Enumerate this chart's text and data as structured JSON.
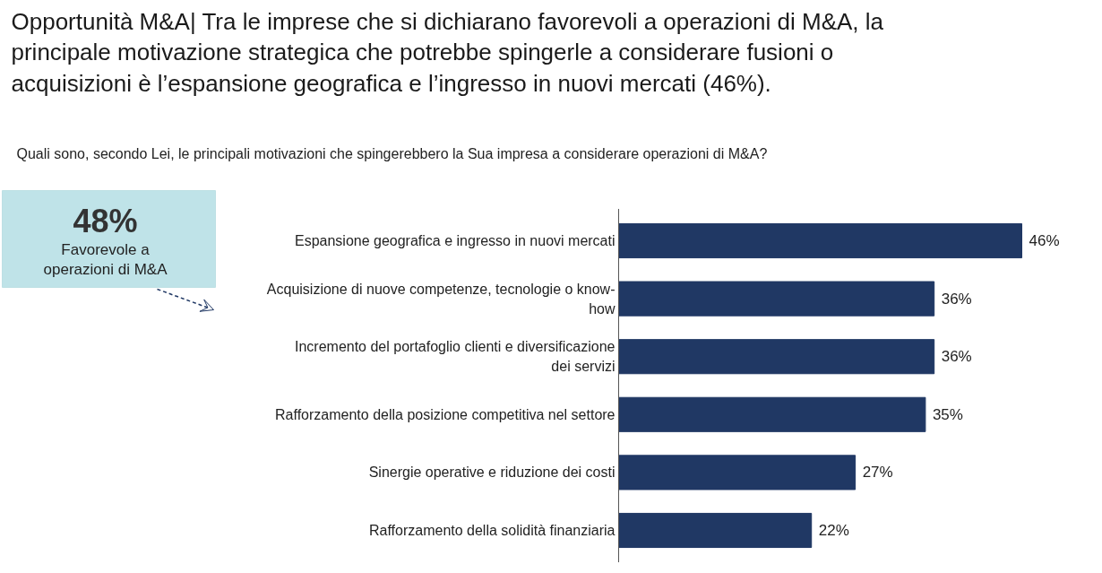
{
  "chart_data": {
    "type": "bar",
    "orientation": "horizontal",
    "title": "Opportunità M&A| Tra le imprese che si dichiarano favorevoli a operazioni di M&A, la principale motivazione strategica che potrebbe spingerle a considerare fusioni o acquisizioni è l’espansione geografica e l’ingresso in nuovi mercati (46%).",
    "subtitle": "Quali sono, secondo Lei, le principali motivazioni che spingerebbero la Sua impresa a considerare operazioni di M&A?",
    "categories": [
      "Espansione geografica e ingresso in nuovi mercati",
      "Acquisizione di nuove competenze, tecnologie o know-how",
      "Incremento del portafoglio clienti e diversificazione dei servizi",
      "Rafforzamento della posizione competitiva nel settore",
      "Sinergie operative e riduzione dei costi",
      "Rafforzamento della solidità finanziaria"
    ],
    "values": [
      46,
      36,
      36,
      35,
      27,
      22
    ],
    "value_labels": [
      "46%",
      "36%",
      "36%",
      "35%",
      "27%",
      "22%"
    ],
    "color": "#203864",
    "annotations": [
      "48%",
      "Favorevole a operazioni di M&A"
    ]
  }
}
